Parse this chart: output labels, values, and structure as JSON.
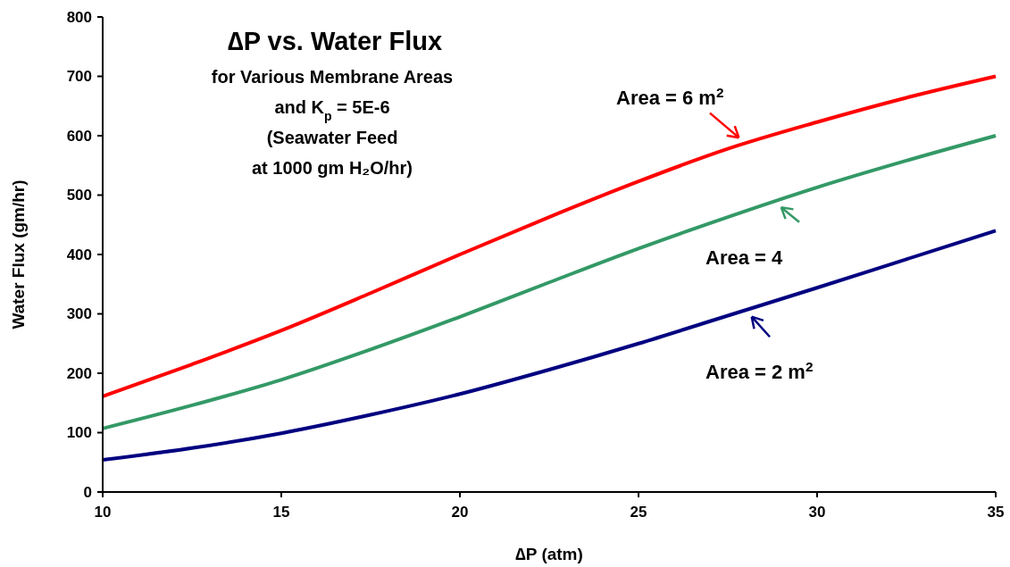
{
  "chart_data": {
    "type": "line",
    "title": "∆P vs. Water Flux",
    "subtitle": "for Various Membrane Areas\nand K$_{p}$ = 5E-6\n(Seawater Feed\nat 1000 gm H₂O/hr)",
    "xlabel": "∆P (atm)",
    "ylabel": "Water Flux (gm/hr)",
    "x": [
      10,
      12.5,
      15,
      17.5,
      20,
      22.5,
      25,
      27.5,
      30,
      32.5,
      35
    ],
    "series": [
      {
        "name": "Area = 6 m$^{2}$",
        "color": "#ff0000",
        "values": [
          161,
          215,
          272,
          335,
          400,
          463,
          523,
          578,
          623,
          664,
          700
        ]
      },
      {
        "name": "Area = 4",
        "color": "#339966",
        "values": [
          107,
          146,
          189,
          240,
          295,
          353,
          410,
          463,
          513,
          558,
          600
        ]
      },
      {
        "name": "Area = 2 m$^{2}$",
        "color": "#000080",
        "values": [
          54,
          74,
          99,
          130,
          165,
          206,
          250,
          297,
          344,
          392,
          440
        ]
      }
    ],
    "xlim": [
      10,
      35
    ],
    "xticks": [
      10,
      15,
      20,
      25,
      30,
      35
    ],
    "ylim": [
      0,
      800
    ],
    "yticks": [
      0,
      100,
      200,
      300,
      400,
      500,
      600,
      700,
      800
    ],
    "grid": false,
    "marker": "none",
    "line_style": "solid"
  }
}
